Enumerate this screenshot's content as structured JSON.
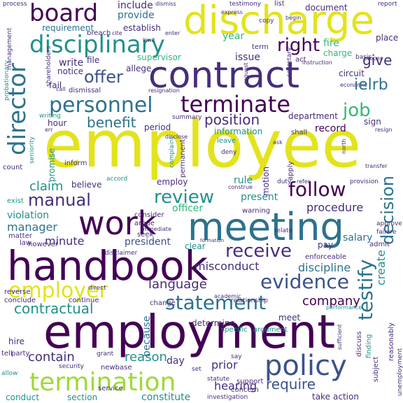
{
  "palette": {
    "yellow": "#e3e31d",
    "lime": "#9fd938",
    "green": "#5ec962",
    "teal_green": "#35b779",
    "teal": "#21918c",
    "steel": "#2c728e",
    "blue": "#3b528b",
    "indigo": "#472d7b",
    "purple": "#440154"
  },
  "words": [
    {
      "text": "employee",
      "color": "yellow"
    },
    {
      "text": "employment",
      "color": "purple"
    },
    {
      "text": "contract",
      "color": "indigo"
    },
    {
      "text": "discharge",
      "color": "yellow"
    },
    {
      "text": "handbook",
      "color": "purple"
    },
    {
      "text": "meeting",
      "color": "steel"
    },
    {
      "text": "work",
      "color": "purple"
    },
    {
      "text": "policy",
      "color": "blue"
    },
    {
      "text": "termination",
      "color": "lime"
    },
    {
      "text": "board",
      "color": "purple"
    },
    {
      "text": "disciplinary",
      "color": "teal"
    },
    {
      "text": "personnel",
      "color": "steel"
    },
    {
      "text": "terminate",
      "color": "purple"
    },
    {
      "text": "director",
      "color": "steel"
    },
    {
      "text": "employer",
      "color": "yellow"
    },
    {
      "text": "statement",
      "color": "steel"
    },
    {
      "text": "evidence",
      "color": "blue"
    },
    {
      "text": "follow",
      "color": "purple"
    },
    {
      "text": "review",
      "color": "teal"
    },
    {
      "text": "testify",
      "color": "steel"
    },
    {
      "text": "decision",
      "color": "steel"
    },
    {
      "text": "receive",
      "color": "indigo"
    },
    {
      "text": "right",
      "color": "purple"
    },
    {
      "text": "job",
      "color": "teal_green"
    },
    {
      "text": "offer",
      "color": "blue"
    },
    {
      "text": "manual",
      "color": "indigo"
    },
    {
      "text": "benefit",
      "color": "steel"
    },
    {
      "text": "position",
      "color": "indigo"
    },
    {
      "text": "contractual",
      "color": "teal"
    },
    {
      "text": "language",
      "color": "indigo"
    },
    {
      "text": "require",
      "color": "blue"
    },
    {
      "text": "reason",
      "color": "teal"
    },
    {
      "text": "contain",
      "color": "indigo"
    },
    {
      "text": "ielrb",
      "color": "steel"
    },
    {
      "text": "company",
      "color": "purple"
    },
    {
      "text": "give",
      "color": "indigo"
    },
    {
      "text": "claim",
      "color": "teal"
    },
    {
      "text": "misconduct",
      "color": "indigo"
    },
    {
      "text": "discipline",
      "color": "steel"
    },
    {
      "text": "minute",
      "color": "indigo"
    },
    {
      "text": "manager",
      "color": "steel"
    },
    {
      "text": "hearing",
      "color": "indigo"
    },
    {
      "text": "prior",
      "color": "indigo"
    },
    {
      "text": "procedure",
      "color": "indigo"
    },
    {
      "text": "salary",
      "color": "steel"
    },
    {
      "text": "create",
      "color": "teal"
    },
    {
      "text": "violation",
      "color": "teal"
    },
    {
      "text": "record",
      "color": "purple"
    },
    {
      "text": "write",
      "color": "indigo"
    },
    {
      "text": "provide",
      "color": "steel"
    },
    {
      "text": "include",
      "color": "indigo"
    },
    {
      "text": "document",
      "color": "indigo"
    },
    {
      "text": "fire",
      "color": "teal_green"
    },
    {
      "text": "charge",
      "color": "teal_green"
    },
    {
      "text": "constitute",
      "color": "teal"
    },
    {
      "text": "section",
      "color": "teal"
    },
    {
      "text": "conduct",
      "color": "teal"
    },
    {
      "text": "hire",
      "color": "indigo"
    },
    {
      "text": "because",
      "color": "steel"
    },
    {
      "text": "day",
      "color": "indigo"
    },
    {
      "text": "rule",
      "color": "teal"
    },
    {
      "text": "officer",
      "color": "teal_green"
    },
    {
      "text": "present",
      "color": "teal"
    },
    {
      "text": "president",
      "color": "blue"
    },
    {
      "text": "believe",
      "color": "indigo"
    },
    {
      "text": "employ",
      "color": "indigo"
    },
    {
      "text": "issue",
      "color": "indigo"
    },
    {
      "text": "year",
      "color": "teal_green"
    },
    {
      "text": "establish",
      "color": "indigo"
    },
    {
      "text": "requirement",
      "color": "steel"
    },
    {
      "text": "supervisor",
      "color": "teal_green"
    },
    {
      "text": "file",
      "color": "indigo"
    },
    {
      "text": "notice",
      "color": "indigo"
    },
    {
      "text": "allege",
      "color": "indigo"
    },
    {
      "text": "fail",
      "color": "indigo"
    },
    {
      "text": "dismissal",
      "color": "indigo"
    },
    {
      "text": "period",
      "color": "indigo"
    },
    {
      "text": "information",
      "color": "teal"
    },
    {
      "text": "department",
      "color": "indigo"
    },
    {
      "text": "circuit",
      "color": "indigo"
    },
    {
      "text": "place",
      "color": "indigo"
    },
    {
      "text": "sign",
      "color": "indigo"
    },
    {
      "text": "shall",
      "color": "indigo"
    },
    {
      "text": "act",
      "color": "indigo"
    },
    {
      "text": "term",
      "color": "indigo"
    },
    {
      "text": "promise",
      "color": "teal"
    },
    {
      "text": "hour",
      "color": "indigo"
    },
    {
      "text": "warning",
      "color": "indigo"
    },
    {
      "text": "consider",
      "color": "indigo"
    },
    {
      "text": "argue",
      "color": "indigo"
    },
    {
      "text": "however",
      "color": "indigo"
    },
    {
      "text": "apply",
      "color": "indigo"
    },
    {
      "text": "motion",
      "color": "indigo"
    },
    {
      "text": "leave",
      "color": "teal"
    },
    {
      "text": "permanent",
      "color": "indigo"
    },
    {
      "text": "clear",
      "color": "teal"
    },
    {
      "text": "pay",
      "color": "indigo"
    },
    {
      "text": "enforceable",
      "color": "indigo"
    },
    {
      "text": "admit",
      "color": "indigo"
    },
    {
      "text": "discuss",
      "color": "indigo"
    },
    {
      "text": "meet",
      "color": "indigo"
    },
    {
      "text": "finding",
      "color": "teal"
    },
    {
      "text": "determine",
      "color": "indigo"
    },
    {
      "text": "concern",
      "color": "indigo"
    },
    {
      "text": "take",
      "color": "indigo"
    },
    {
      "text": "action",
      "color": "indigo"
    },
    {
      "text": "subject",
      "color": "indigo"
    },
    {
      "text": "support",
      "color": "indigo"
    },
    {
      "text": "party",
      "color": "indigo"
    },
    {
      "text": "newbase",
      "color": "indigo"
    },
    {
      "text": "count",
      "color": "indigo"
    },
    {
      "text": "exist",
      "color": "teal"
    },
    {
      "text": "law",
      "color": "indigo"
    },
    {
      "text": "matter",
      "color": "indigo"
    },
    {
      "text": "continue",
      "color": "indigo"
    },
    {
      "text": "conclude",
      "color": "indigo"
    },
    {
      "text": "tell",
      "color": "indigo"
    },
    {
      "text": "reverse",
      "color": "indigo"
    },
    {
      "text": "change",
      "color": "indigo"
    },
    {
      "text": "inform",
      "color": "indigo"
    },
    {
      "text": "seek",
      "color": "indigo"
    },
    {
      "text": "accord",
      "color": "teal"
    },
    {
      "text": "deny",
      "color": "indigo"
    },
    {
      "text": "duty",
      "color": "indigo"
    },
    {
      "text": "provision",
      "color": "indigo"
    },
    {
      "text": "approve",
      "color": "indigo"
    },
    {
      "text": "failure",
      "color": "indigo"
    },
    {
      "text": "relate",
      "color": "indigo"
    },
    {
      "text": "grant",
      "color": "indigo"
    },
    {
      "text": "service",
      "color": "indigo"
    },
    {
      "text": "security",
      "color": "indigo"
    },
    {
      "text": "allow",
      "color": "teal"
    },
    {
      "text": "say",
      "color": "indigo"
    },
    {
      "text": "set",
      "color": "indigo"
    },
    {
      "text": "investigation",
      "color": "indigo"
    },
    {
      "text": "statute",
      "color": "indigo"
    },
    {
      "text": "reasonably",
      "color": "indigo"
    },
    {
      "text": "unemployment",
      "color": "indigo"
    },
    {
      "text": "process",
      "color": "indigo"
    },
    {
      "text": "testimony",
      "color": "indigo"
    },
    {
      "text": "list",
      "color": "indigo"
    },
    {
      "text": "report",
      "color": "indigo"
    },
    {
      "text": "management",
      "color": "indigo"
    },
    {
      "text": "probationary",
      "color": "teal"
    },
    {
      "text": "shareholders",
      "color": "indigo"
    },
    {
      "text": "seniority",
      "color": "teal"
    },
    {
      "text": "immediate",
      "color": "indigo"
    },
    {
      "text": "economic",
      "color": "indigo"
    },
    {
      "text": "resignation",
      "color": "indigo"
    },
    {
      "text": "secretary",
      "color": "indigo"
    },
    {
      "text": "summary",
      "color": "indigo"
    },
    {
      "text": "basis",
      "color": "indigo"
    },
    {
      "text": "ask",
      "color": "indigo"
    },
    {
      "text": "breach",
      "color": "indigo"
    },
    {
      "text": "copy",
      "color": "indigo"
    },
    {
      "text": "dismiss",
      "color": "indigo"
    },
    {
      "text": "enter",
      "color": "indigo"
    },
    {
      "text": "begin",
      "color": "indigo"
    },
    {
      "text": "proper",
      "color": "indigo"
    },
    {
      "text": "specific",
      "color": "teal"
    },
    {
      "text": "argument",
      "color": "teal"
    },
    {
      "text": "relationship",
      "color": "indigo"
    },
    {
      "text": "direct",
      "color": "indigo"
    },
    {
      "text": "sufficient",
      "color": "indigo"
    },
    {
      "text": "performance",
      "color": "teal"
    },
    {
      "text": "disclaimer",
      "color": "indigo"
    },
    {
      "text": "academic",
      "color": "indigo"
    },
    {
      "text": "complaint",
      "color": "teal"
    },
    {
      "text": "refer",
      "color": "indigo"
    },
    {
      "text": "north",
      "color": "indigo"
    },
    {
      "text": "resign",
      "color": "indigo"
    },
    {
      "text": "construe",
      "color": "indigo"
    },
    {
      "text": "transfer",
      "color": "indigo"
    },
    {
      "text": "request",
      "color": "indigo"
    },
    {
      "text": "writing",
      "color": "teal"
    },
    {
      "text": "err",
      "color": "indigo"
    },
    {
      "text": "formation",
      "color": "indigo"
    },
    {
      "text": "limit",
      "color": "indigo"
    },
    {
      "text": "cite",
      "color": "indigo"
    },
    {
      "text": "call",
      "color": "indigo"
    },
    {
      "text": "express",
      "color": "indigo"
    },
    {
      "text": "instruction",
      "color": "indigo"
    },
    {
      "text": "disclose",
      "color": "indigo"
    }
  ]
}
